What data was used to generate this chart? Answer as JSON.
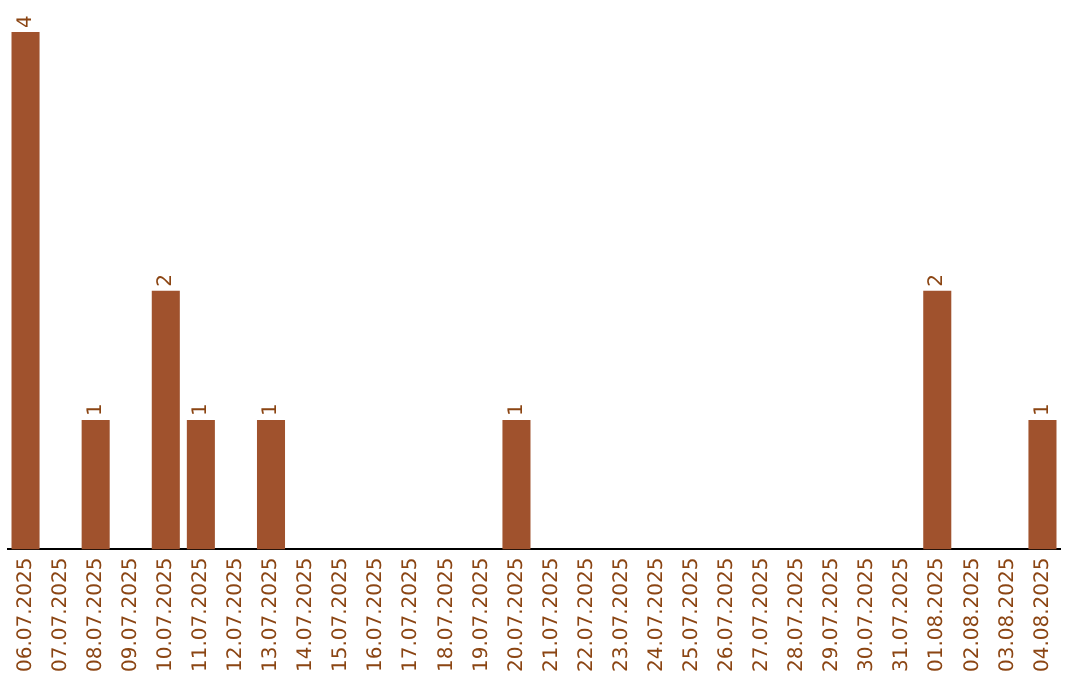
{
  "chart_data": {
    "type": "bar",
    "categories": [
      "06.07.2025",
      "07.07.2025",
      "08.07.2025",
      "09.07.2025",
      "10.07.2025",
      "11.07.2025",
      "12.07.2025",
      "13.07.2025",
      "14.07.2025",
      "15.07.2025",
      "16.07.2025",
      "17.07.2025",
      "18.07.2025",
      "19.07.2025",
      "20.07.2025",
      "21.07.2025",
      "22.07.2025",
      "23.07.2025",
      "24.07.2025",
      "25.07.2025",
      "26.07.2025",
      "27.07.2025",
      "28.07.2025",
      "29.07.2025",
      "30.07.2025",
      "31.07.2025",
      "01.08.2025",
      "02.08.2025",
      "03.08.2025",
      "04.08.2025"
    ],
    "values": [
      4,
      0,
      1,
      0,
      2,
      1,
      0,
      1,
      0,
      0,
      0,
      0,
      0,
      0,
      1,
      0,
      0,
      0,
      0,
      0,
      0,
      0,
      0,
      0,
      0,
      0,
      2,
      0,
      0,
      1
    ],
    "value_labels": [
      "4",
      null,
      "1",
      null,
      "2",
      "1",
      null,
      "1",
      null,
      null,
      null,
      null,
      null,
      null,
      "1",
      null,
      null,
      null,
      null,
      null,
      null,
      null,
      null,
      null,
      null,
      null,
      "2",
      null,
      null,
      "1"
    ],
    "color": "#a0522d",
    "grid": false,
    "legend": false
  }
}
